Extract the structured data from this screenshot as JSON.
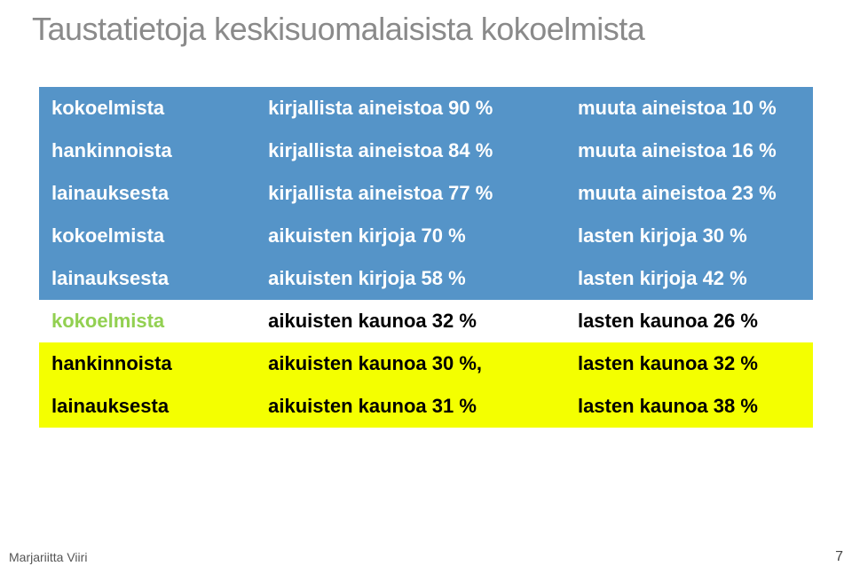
{
  "title": "Taustatietoja keskisuomalaisista kokoelmista",
  "table": {
    "rows": [
      {
        "c1": "kokoelmista",
        "c2": "kirjallista aineistoa 90 %",
        "c3": "muuta aineistoa 10 %",
        "style": "blue"
      },
      {
        "c1": "hankinnoista",
        "c2": "kirjallista aineistoa 84 %",
        "c3": "muuta aineistoa 16 %",
        "style": "blue"
      },
      {
        "c1": "lainauksesta",
        "c2": "kirjallista aineistoa 77 %",
        "c3": "muuta aineistoa 23 %",
        "style": "blue"
      },
      {
        "c1": "kokoelmista",
        "c2": "aikuisten kirjoja 70 %",
        "c3": "lasten kirjoja  30 %",
        "style": "blue"
      },
      {
        "c1": "lainauksesta",
        "c2": "aikuisten kirjoja 58 %",
        "c3": "lasten kirjoja 42 %",
        "style": "blue"
      },
      {
        "c1": "kokoelmista",
        "c2": "aikuisten kaunoa 32 %",
        "c3": "lasten kaunoa 26 %",
        "style": "white"
      },
      {
        "c1": "hankinnoista",
        "c2": "aikuisten kaunoa 30 %,",
        "c3": "lasten kaunoa 32 %",
        "style": "yellow"
      },
      {
        "c1": "lainauksesta",
        "c2": "aikuisten kaunoa 31 %",
        "c3": "lasten kaunoa 38 %",
        "style": "yellow"
      }
    ]
  },
  "footer": {
    "author": "Marjariitta Viiri",
    "page": "7"
  },
  "colors": {
    "blue": "#5594c8",
    "white": "#ffffff",
    "yellow": "#f4ff00",
    "green_text": "#92d051",
    "title_gray": "#8a8a8a"
  }
}
